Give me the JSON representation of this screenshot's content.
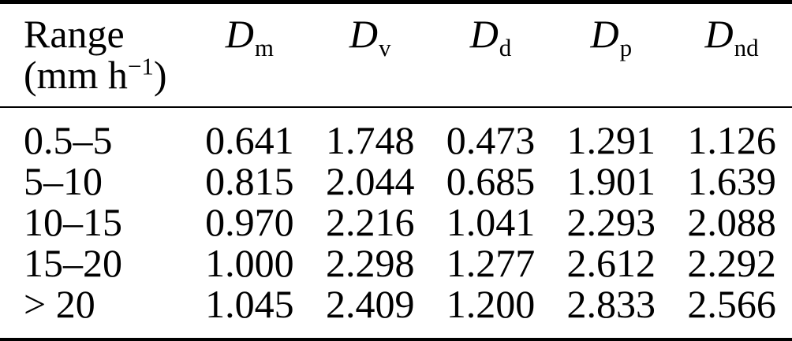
{
  "colors": {
    "background": "#ffffff",
    "text": "#000000",
    "rule": "#000000"
  },
  "table": {
    "header": {
      "range": {
        "label": "Range",
        "unit_prefix": "(mm h",
        "unit_exponent": "−1",
        "unit_suffix": ")"
      },
      "columns": [
        {
          "base": "D",
          "sub": "m"
        },
        {
          "base": "D",
          "sub": "v"
        },
        {
          "base": "D",
          "sub": "d"
        },
        {
          "base": "D",
          "sub": "p"
        },
        {
          "base": "D",
          "sub": "nd"
        }
      ]
    },
    "rows": [
      {
        "range": "0.5–5",
        "values": [
          "0.641",
          "1.748",
          "0.473",
          "1.291",
          "1.126"
        ]
      },
      {
        "range": "5–10",
        "values": [
          "0.815",
          "2.044",
          "0.685",
          "1.901",
          "1.639"
        ]
      },
      {
        "range": "10–15",
        "values": [
          "0.970",
          "2.216",
          "1.041",
          "2.293",
          "2.088"
        ]
      },
      {
        "range": "15–20",
        "values": [
          "1.000",
          "2.298",
          "1.277",
          "2.612",
          "2.292"
        ]
      },
      {
        "range": "> 20",
        "values": [
          "1.045",
          "2.409",
          "1.200",
          "2.833",
          "2.566"
        ]
      }
    ]
  }
}
